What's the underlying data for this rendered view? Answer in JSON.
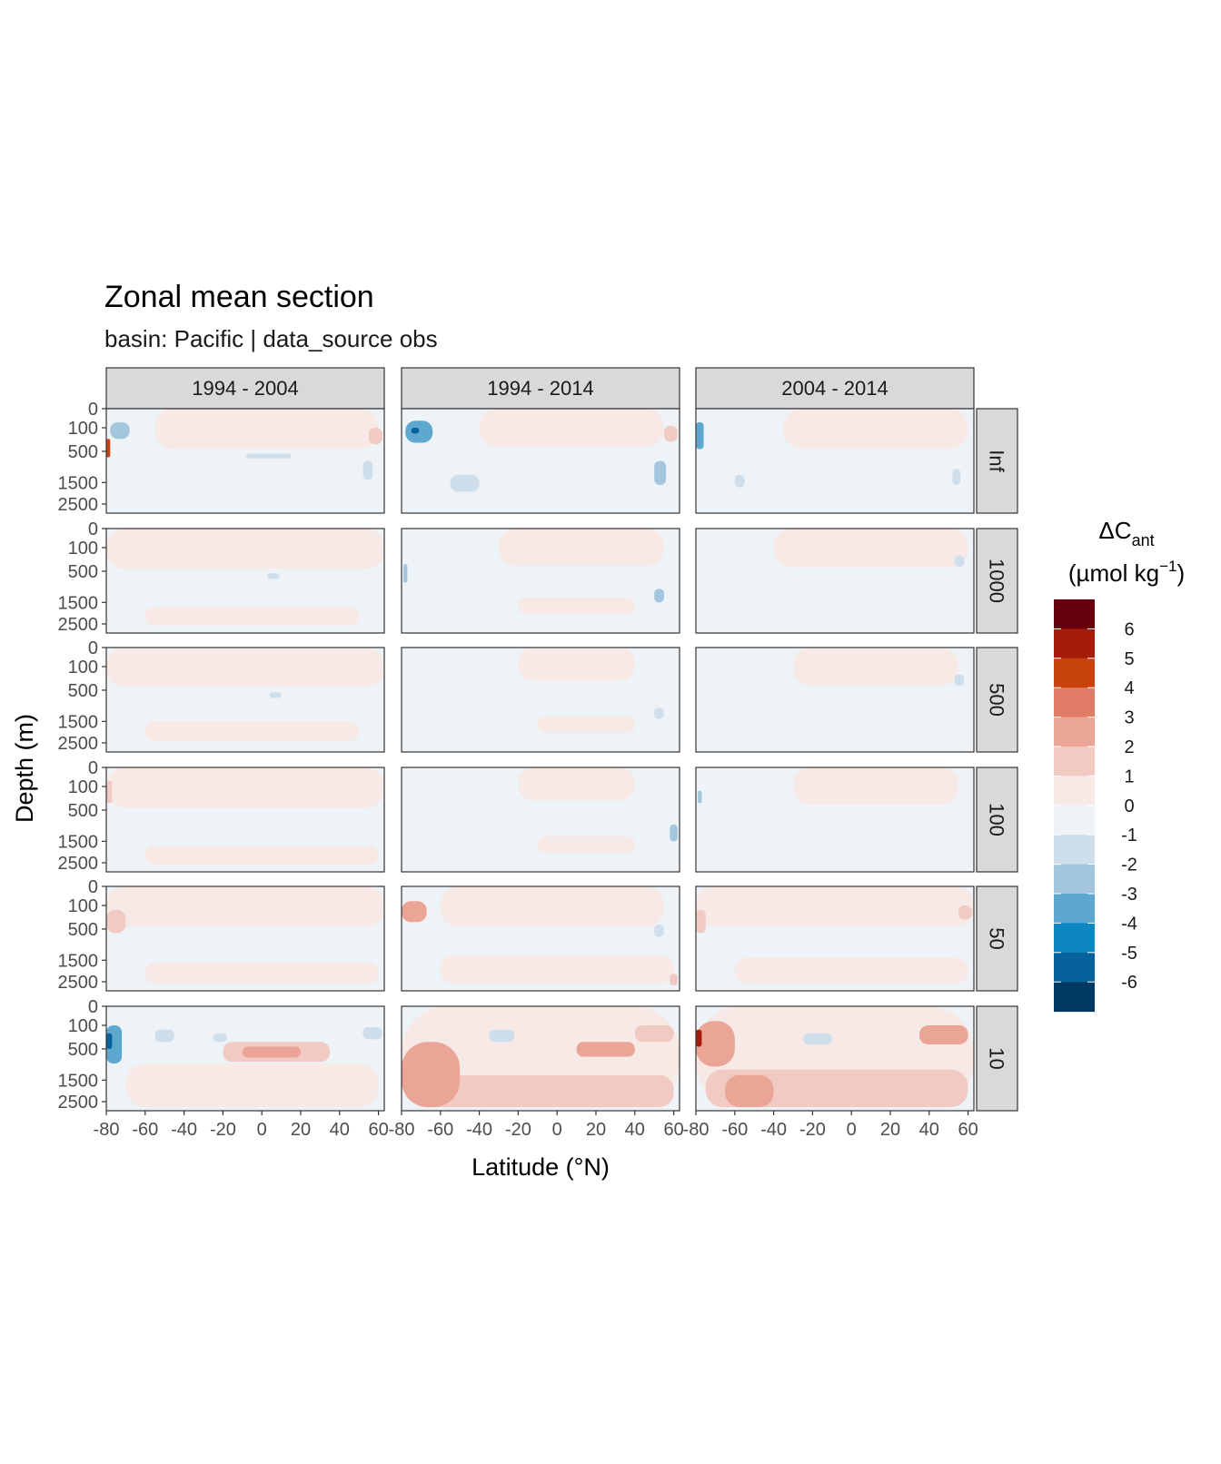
{
  "chart_data": {
    "type": "heatmap",
    "title": "Zonal mean section",
    "subtitle": "basin: Pacific | data_source obs",
    "xlabel": "Latitude (°N)",
    "ylabel": "Depth (m)",
    "x_ticks": [
      "-80",
      "-60",
      "-40",
      "-20",
      "0",
      "20",
      "40",
      "60"
    ],
    "x_tick_values": [
      -80,
      -60,
      -40,
      -20,
      0,
      20,
      40,
      60
    ],
    "xlim": [
      -80,
      63
    ],
    "y_ticks": [
      "0",
      "100",
      "500",
      "1500",
      "2500"
    ],
    "y_tick_values": [
      0,
      100,
      500,
      1500,
      2500
    ],
    "ylim": [
      0,
      3000
    ],
    "y_scale": "sqrt, reversed",
    "columns": [
      "1994 - 2004",
      "1994 - 2014",
      "2004 - 2014"
    ],
    "rows": [
      "Inf",
      "1000",
      "500",
      "100",
      "50",
      "10"
    ],
    "legend": {
      "title_main": "ΔC",
      "title_sub": "ant",
      "unit_main": "(µmol kg",
      "unit_sup": "−1",
      "unit_close": ")",
      "labels": [
        "6",
        "5",
        "4",
        "3",
        "2",
        "1",
        "0",
        "-1",
        "-2",
        "-3",
        "-4",
        "-5",
        "-6"
      ],
      "colors": [
        "#67000d",
        "#a51d0a",
        "#c8420e",
        "#e07b66",
        "#eaa597",
        "#f1cbc3",
        "#f7e9e6",
        "#eef3f7",
        "#cfdeeb",
        "#a3c6dd",
        "#5ea8d0",
        "#0c87c2",
        "#05629c",
        "#003a62"
      ]
    },
    "panels": [
      [
        {
          "row": "Inf",
          "col": "1994 - 2004",
          "features": [
            {
              "lat": [
                -55,
                60
              ],
              "depth": [
                0,
                450
              ],
              "v": 0.5
            },
            {
              "lat": [
                -78,
                -68
              ],
              "depth": [
                50,
                250
              ],
              "v": -2
            },
            {
              "lat": [
                -80,
                -78
              ],
              "depth": [
                250,
                650
              ],
              "v": 5
            },
            {
              "lat": [
                -8,
                15
              ],
              "depth": [
                560,
                680
              ],
              "v": -1.5
            },
            {
              "lat": [
                52,
                57
              ],
              "depth": [
                750,
                1400
              ],
              "v": -1.5
            },
            {
              "lat": [
                55,
                62
              ],
              "depth": [
                100,
                350
              ],
              "v": 1.5
            }
          ]
        },
        {
          "row": "Inf",
          "col": "1994 - 2014",
          "features": [
            {
              "lat": [
                -40,
                55
              ],
              "depth": [
                0,
                400
              ],
              "v": 0.5
            },
            {
              "lat": [
                -78,
                -64
              ],
              "depth": [
                40,
                320
              ],
              "v": -3
            },
            {
              "lat": [
                -75,
                -71
              ],
              "depth": [
                100,
                170
              ],
              "v": -5
            },
            {
              "lat": [
                -55,
                -40
              ],
              "depth": [
                1200,
                1900
              ],
              "v": -1.5
            },
            {
              "lat": [
                50,
                56
              ],
              "depth": [
                750,
                1600
              ],
              "v": -2
            },
            {
              "lat": [
                55,
                62
              ],
              "depth": [
                80,
                300
              ],
              "v": 1.5
            }
          ]
        },
        {
          "row": "Inf",
          "col": "2004 - 2014",
          "features": [
            {
              "lat": [
                -35,
                60
              ],
              "depth": [
                0,
                450
              ],
              "v": 0.5
            },
            {
              "lat": [
                -80,
                -76
              ],
              "depth": [
                50,
                450
              ],
              "v": -3
            },
            {
              "lat": [
                -60,
                -55
              ],
              "depth": [
                1200,
                1700
              ],
              "v": -1.5
            },
            {
              "lat": [
                52,
                56
              ],
              "depth": [
                1000,
                1600
              ],
              "v": -1.5
            }
          ]
        }
      ],
      [
        {
          "row": "1000",
          "col": "1994 - 2004",
          "features": [
            {
              "lat": [
                -80,
                63
              ],
              "depth": [
                0,
                450
              ],
              "v": 0.5
            },
            {
              "lat": [
                -60,
                50
              ],
              "depth": [
                1700,
                2600
              ],
              "v": 0.5
            },
            {
              "lat": [
                3,
                9
              ],
              "depth": [
                550,
                700
              ],
              "v": -1.5
            }
          ]
        },
        {
          "row": "1000",
          "col": "1994 - 2014",
          "features": [
            {
              "lat": [
                -30,
                55
              ],
              "depth": [
                0,
                380
              ],
              "v": 0.5
            },
            {
              "lat": [
                -20,
                40
              ],
              "depth": [
                1300,
                2000
              ],
              "v": 0.5
            },
            {
              "lat": [
                50,
                55
              ],
              "depth": [
                1000,
                1500
              ],
              "v": -2
            },
            {
              "lat": [
                -79,
                -77
              ],
              "depth": [
                350,
                800
              ],
              "v": -2
            }
          ]
        },
        {
          "row": "1000",
          "col": "2004 - 2014",
          "features": [
            {
              "lat": [
                -40,
                60
              ],
              "depth": [
                0,
                420
              ],
              "v": 0.5
            },
            {
              "lat": [
                53,
                58
              ],
              "depth": [
                200,
                400
              ],
              "v": -1.5
            }
          ]
        }
      ],
      [
        {
          "row": "500",
          "col": "1994 - 2004",
          "features": [
            {
              "lat": [
                -80,
                63
              ],
              "depth": [
                0,
                420
              ],
              "v": 0.5
            },
            {
              "lat": [
                -60,
                50
              ],
              "depth": [
                1500,
                2400
              ],
              "v": 0.5
            },
            {
              "lat": [
                4,
                10
              ],
              "depth": [
                550,
                700
              ],
              "v": -1.5
            }
          ]
        },
        {
          "row": "500",
          "col": "1994 - 2014",
          "features": [
            {
              "lat": [
                -20,
                40
              ],
              "depth": [
                0,
                300
              ],
              "v": 0.5
            },
            {
              "lat": [
                -10,
                40
              ],
              "depth": [
                1300,
                2000
              ],
              "v": 0.5
            },
            {
              "lat": [
                50,
                55
              ],
              "depth": [
                1000,
                1400
              ],
              "v": -1.5
            }
          ]
        },
        {
          "row": "500",
          "col": "2004 - 2014",
          "features": [
            {
              "lat": [
                -30,
                55
              ],
              "depth": [
                0,
                400
              ],
              "v": 0.5
            },
            {
              "lat": [
                53,
                58
              ],
              "depth": [
                200,
                400
              ],
              "v": -1.5
            }
          ]
        }
      ],
      [
        {
          "row": "100",
          "col": "1994 - 2004",
          "features": [
            {
              "lat": [
                -80,
                63
              ],
              "depth": [
                0,
                450
              ],
              "v": 0.5
            },
            {
              "lat": [
                -60,
                60
              ],
              "depth": [
                1700,
                2600
              ],
              "v": 0.5
            },
            {
              "lat": [
                -80,
                -77
              ],
              "depth": [
                50,
                350
              ],
              "v": 1.5
            }
          ]
        },
        {
          "row": "100",
          "col": "1994 - 2014",
          "features": [
            {
              "lat": [
                -20,
                40
              ],
              "depth": [
                0,
                300
              ],
              "v": 0.5
            },
            {
              "lat": [
                -10,
                40
              ],
              "depth": [
                1300,
                2000
              ],
              "v": 0.5
            },
            {
              "lat": [
                58,
                62
              ],
              "depth": [
                900,
                1500
              ],
              "v": -2
            }
          ]
        },
        {
          "row": "100",
          "col": "2004 - 2014",
          "features": [
            {
              "lat": [
                -30,
                55
              ],
              "depth": [
                0,
                380
              ],
              "v": 0.5
            },
            {
              "lat": [
                -79,
                -77
              ],
              "depth": [
                150,
                350
              ],
              "v": -2
            }
          ]
        }
      ],
      [
        {
          "row": "50",
          "col": "1994 - 2004",
          "features": [
            {
              "lat": [
                -80,
                63
              ],
              "depth": [
                0,
                450
              ],
              "v": 0.5
            },
            {
              "lat": [
                -60,
                60
              ],
              "depth": [
                1600,
                2600
              ],
              "v": 0.5
            },
            {
              "lat": [
                -80,
                -70
              ],
              "depth": [
                150,
                600
              ],
              "v": 1.5
            }
          ]
        },
        {
          "row": "50",
          "col": "1994 - 2014",
          "features": [
            {
              "lat": [
                -60,
                55
              ],
              "depth": [
                0,
                450
              ],
              "v": 0.5
            },
            {
              "lat": [
                -60,
                60
              ],
              "depth": [
                1300,
                2600
              ],
              "v": 0.5
            },
            {
              "lat": [
                -80,
                -67
              ],
              "depth": [
                60,
                350
              ],
              "v": 2.5
            },
            {
              "lat": [
                50,
                55
              ],
              "depth": [
                400,
                700
              ],
              "v": -1.5
            },
            {
              "lat": [
                58,
                62
              ],
              "depth": [
                2100,
                2700
              ],
              "v": 2
            }
          ]
        },
        {
          "row": "50",
          "col": "2004 - 2014",
          "features": [
            {
              "lat": [
                -80,
                63
              ],
              "depth": [
                0,
                450
              ],
              "v": 0.5
            },
            {
              "lat": [
                -60,
                60
              ],
              "depth": [
                1400,
                2600
              ],
              "v": 0.5
            },
            {
              "lat": [
                -80,
                -75
              ],
              "depth": [
                150,
                600
              ],
              "v": 1.5
            },
            {
              "lat": [
                55,
                62
              ],
              "depth": [
                100,
                300
              ],
              "v": 1.5
            }
          ]
        }
      ],
      [
        {
          "row": "10",
          "col": "1994 - 2004",
          "features": [
            {
              "lat": [
                -70,
                60
              ],
              "depth": [
                900,
                2800
              ],
              "v": 0.5
            },
            {
              "lat": [
                -80,
                -72
              ],
              "depth": [
                100,
                900
              ],
              "v": -3
            },
            {
              "lat": [
                -80,
                -77
              ],
              "depth": [
                200,
                500
              ],
              "v": -5
            },
            {
              "lat": [
                -55,
                -45
              ],
              "depth": [
                150,
                350
              ],
              "v": -1.5
            },
            {
              "lat": [
                -25,
                -18
              ],
              "depth": [
                200,
                350
              ],
              "v": -1.5
            },
            {
              "lat": [
                -20,
                35
              ],
              "depth": [
                350,
                850
              ],
              "v": 1.5
            },
            {
              "lat": [
                -10,
                20
              ],
              "depth": [
                450,
                720
              ],
              "v": 3
            },
            {
              "lat": [
                52,
                62
              ],
              "depth": [
                120,
                300
              ],
              "v": -1.5
            }
          ]
        },
        {
          "row": "10",
          "col": "1994 - 2014",
          "features": [
            {
              "lat": [
                -80,
                63
              ],
              "depth": [
                0,
                2800
              ],
              "v": 0.5
            },
            {
              "lat": [
                -75,
                60
              ],
              "depth": [
                1300,
                2800
              ],
              "v": 1.5
            },
            {
              "lat": [
                -80,
                -50
              ],
              "depth": [
                350,
                2800
              ],
              "v": 2.5
            },
            {
              "lat": [
                -35,
                -22
              ],
              "depth": [
                150,
                350
              ],
              "v": -1.5
            },
            {
              "lat": [
                10,
                40
              ],
              "depth": [
                350,
                700
              ],
              "v": 2.5
            },
            {
              "lat": [
                40,
                60
              ],
              "depth": [
                100,
                350
              ],
              "v": 2
            }
          ]
        },
        {
          "row": "10",
          "col": "2004 - 2014",
          "features": [
            {
              "lat": [
                -80,
                63
              ],
              "depth": [
                0,
                2800
              ],
              "v": 0.5
            },
            {
              "lat": [
                -75,
                60
              ],
              "depth": [
                1100,
                2800
              ],
              "v": 1.5
            },
            {
              "lat": [
                -80,
                -60
              ],
              "depth": [
                60,
                1000
              ],
              "v": 2.5
            },
            {
              "lat": [
                -80,
                -77
              ],
              "depth": [
                150,
                450
              ],
              "v": 5.5
            },
            {
              "lat": [
                -65,
                -40
              ],
              "depth": [
                1300,
                2800
              ],
              "v": 2.5
            },
            {
              "lat": [
                -25,
                -10
              ],
              "depth": [
                200,
                400
              ],
              "v": -1.5
            },
            {
              "lat": [
                35,
                60
              ],
              "depth": [
                100,
                400
              ],
              "v": 2.5
            }
          ]
        }
      ]
    ]
  }
}
